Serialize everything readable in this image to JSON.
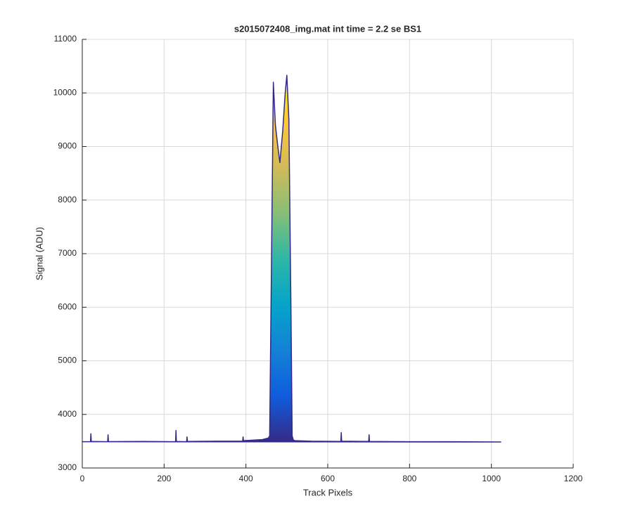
{
  "chart_data": {
    "type": "area",
    "title": "s2015072408_img.mat int time = 2.2 se   BS1",
    "xlabel": "Track Pixels",
    "ylabel": "Signal (ADU)",
    "x": [
      0,
      20,
      21,
      22,
      62,
      63,
      64,
      150,
      228,
      229,
      230,
      255,
      256,
      257,
      330,
      392,
      393,
      394,
      440,
      455,
      458,
      462,
      467,
      472,
      478,
      483,
      490,
      496,
      500,
      505,
      510,
      513,
      516,
      520,
      560,
      632,
      633,
      634,
      700,
      701,
      702,
      800,
      900,
      1023
    ],
    "values": [
      3490,
      3490,
      3640,
      3495,
      3490,
      3620,
      3492,
      3495,
      3490,
      3700,
      3495,
      3490,
      3580,
      3495,
      3500,
      3500,
      3580,
      3510,
      3530,
      3560,
      3600,
      6500,
      10200,
      9400,
      9000,
      8700,
      9300,
      10000,
      10330,
      9500,
      6000,
      3600,
      3520,
      3510,
      3500,
      3495,
      3660,
      3500,
      3495,
      3620,
      3495,
      3490,
      3490,
      3485
    ],
    "color": "#352a87",
    "colormap": [
      "#352a87",
      "#0f5cdd",
      "#1481d6",
      "#06a4ca",
      "#2eb7a4",
      "#87bf77",
      "#d1bb59",
      "#fec832",
      "#f9fb0e"
    ],
    "xlim": [
      0,
      1200
    ],
    "xticks": [
      0,
      200,
      400,
      600,
      800,
      1000,
      1200
    ],
    "ylim": [
      3000,
      11000
    ],
    "yticks": [
      3000,
      4000,
      5000,
      6000,
      7000,
      8000,
      9000,
      10000,
      11000
    ],
    "grid": true
  }
}
